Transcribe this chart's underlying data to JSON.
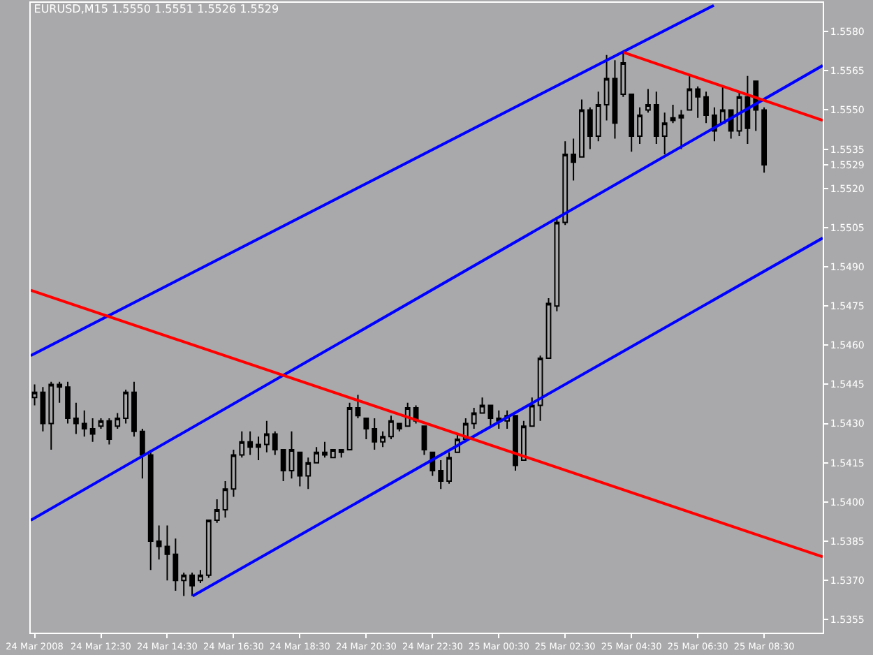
{
  "chart_data": {
    "type": "candlestick",
    "title": "EURUSD,M15 1.5550 1.5551 1.5526 1.5529",
    "x": [
      "2008-03-24T10:30",
      "2008-03-24T10:45",
      "2008-03-24T11:00",
      "2008-03-24T11:15",
      "2008-03-24T11:30",
      "2008-03-24T11:45",
      "2008-03-24T12:00",
      "2008-03-24T12:15",
      "2008-03-24T12:30",
      "2008-03-24T12:45",
      "2008-03-24T13:00",
      "2008-03-24T13:15",
      "2008-03-24T13:30",
      "2008-03-24T13:45",
      "2008-03-24T14:00",
      "2008-03-24T14:15",
      "2008-03-24T14:30",
      "2008-03-24T14:45",
      "2008-03-24T15:00",
      "2008-03-24T15:15",
      "2008-03-24T15:30",
      "2008-03-24T15:45",
      "2008-03-24T16:00",
      "2008-03-24T16:15",
      "2008-03-24T16:30",
      "2008-03-24T16:45",
      "2008-03-24T17:00",
      "2008-03-24T17:15",
      "2008-03-24T17:30",
      "2008-03-24T17:45",
      "2008-03-24T18:00",
      "2008-03-24T18:15",
      "2008-03-24T18:30",
      "2008-03-24T18:45",
      "2008-03-24T19:00",
      "2008-03-24T19:15",
      "2008-03-24T19:30",
      "2008-03-24T19:45",
      "2008-03-24T20:00",
      "2008-03-24T20:15",
      "2008-03-24T20:30",
      "2008-03-24T20:45",
      "2008-03-24T21:00",
      "2008-03-24T21:15",
      "2008-03-24T21:30",
      "2008-03-24T21:45",
      "2008-03-24T22:00",
      "2008-03-24T22:15",
      "2008-03-24T22:30",
      "2008-03-24T22:45",
      "2008-03-24T23:00",
      "2008-03-24T23:15",
      "2008-03-24T23:30",
      "2008-03-24T23:45",
      "2008-03-25T00:00",
      "2008-03-25T00:15",
      "2008-03-25T00:30",
      "2008-03-25T00:45",
      "2008-03-25T01:00",
      "2008-03-25T01:15",
      "2008-03-25T01:30",
      "2008-03-25T01:45",
      "2008-03-25T02:00",
      "2008-03-25T02:15",
      "2008-03-25T02:30",
      "2008-03-25T02:45",
      "2008-03-25T03:00",
      "2008-03-25T03:15",
      "2008-03-25T03:30",
      "2008-03-25T03:45",
      "2008-03-25T04:00",
      "2008-03-25T04:15",
      "2008-03-25T04:30",
      "2008-03-25T04:45",
      "2008-03-25T05:00",
      "2008-03-25T05:15",
      "2008-03-25T05:30",
      "2008-03-25T05:45",
      "2008-03-25T06:00",
      "2008-03-25T06:15",
      "2008-03-25T06:30",
      "2008-03-25T06:45",
      "2008-03-25T07:00",
      "2008-03-25T07:15",
      "2008-03-25T07:30",
      "2008-03-25T07:45",
      "2008-03-25T08:00",
      "2008-03-25T08:15",
      "2008-03-25T08:30"
    ],
    "ohlc": [
      [
        1.544,
        1.5445,
        1.5437,
        1.5442
      ],
      [
        1.5442,
        1.5444,
        1.5427,
        1.543
      ],
      [
        1.543,
        1.5446,
        1.542,
        1.5445
      ],
      [
        1.5445,
        1.5446,
        1.5438,
        1.5444
      ],
      [
        1.5444,
        1.5446,
        1.543,
        1.5432
      ],
      [
        1.5432,
        1.5438,
        1.5426,
        1.543
      ],
      [
        1.543,
        1.5435,
        1.5425,
        1.5428
      ],
      [
        1.5428,
        1.5432,
        1.5423,
        1.5426
      ],
      [
        1.5429,
        1.5432,
        1.5428,
        1.5431
      ],
      [
        1.5431,
        1.5432,
        1.5422,
        1.5424
      ],
      [
        1.5429,
        1.5434,
        1.5428,
        1.5432
      ],
      [
        1.5432,
        1.5443,
        1.543,
        1.5442
      ],
      [
        1.5442,
        1.5446,
        1.5425,
        1.5427
      ],
      [
        1.5427,
        1.5428,
        1.5409,
        1.5418
      ],
      [
        1.5418,
        1.542,
        1.5374,
        1.5385
      ],
      [
        1.5385,
        1.5391,
        1.5378,
        1.5383
      ],
      [
        1.5383,
        1.5391,
        1.537,
        1.538
      ],
      [
        1.538,
        1.5386,
        1.5366,
        1.537
      ],
      [
        1.537,
        1.5373,
        1.5364,
        1.5372
      ],
      [
        1.5372,
        1.5373,
        1.5364,
        1.5368
      ],
      [
        1.537,
        1.5374,
        1.5369,
        1.5372
      ],
      [
        1.5372,
        1.5393,
        1.5371,
        1.5393
      ],
      [
        1.5393,
        1.5401,
        1.5392,
        1.5397
      ],
      [
        1.5397,
        1.5408,
        1.5394,
        1.5405
      ],
      [
        1.5405,
        1.542,
        1.5402,
        1.5418
      ],
      [
        1.5418,
        1.5427,
        1.5417,
        1.5423
      ],
      [
        1.5423,
        1.5427,
        1.5418,
        1.5421
      ],
      [
        1.5421,
        1.5425,
        1.5416,
        1.5422
      ],
      [
        1.5422,
        1.5431,
        1.5419,
        1.5426
      ],
      [
        1.5426,
        1.5427,
        1.5418,
        1.542
      ],
      [
        1.542,
        1.542,
        1.5408,
        1.5412
      ],
      [
        1.5412,
        1.5427,
        1.5409,
        1.542
      ],
      [
        1.5419,
        1.5419,
        1.5406,
        1.541
      ],
      [
        1.541,
        1.5417,
        1.5405,
        1.5415
      ],
      [
        1.5415,
        1.5421,
        1.5415,
        1.5419
      ],
      [
        1.5419,
        1.5423,
        1.5417,
        1.5418
      ],
      [
        1.5417,
        1.542,
        1.5417,
        1.542
      ],
      [
        1.5419,
        1.542,
        1.5417,
        1.542
      ],
      [
        1.542,
        1.5438,
        1.542,
        1.5436
      ],
      [
        1.5436,
        1.5441,
        1.5432,
        1.5433
      ],
      [
        1.5432,
        1.5432,
        1.5424,
        1.5428
      ],
      [
        1.5428,
        1.5432,
        1.542,
        1.5423
      ],
      [
        1.5423,
        1.5427,
        1.5421,
        1.5425
      ],
      [
        1.5425,
        1.5433,
        1.5424,
        1.5431
      ],
      [
        1.543,
        1.543,
        1.5427,
        1.5428
      ],
      [
        1.5429,
        1.5438,
        1.5429,
        1.5436
      ],
      [
        1.5436,
        1.5437,
        1.543,
        1.5431
      ],
      [
        1.5429,
        1.5429,
        1.5418,
        1.542
      ],
      [
        1.5419,
        1.5419,
        1.541,
        1.5412
      ],
      [
        1.5412,
        1.5416,
        1.5405,
        1.5408
      ],
      [
        1.5408,
        1.5419,
        1.5407,
        1.5417
      ],
      [
        1.5419,
        1.5426,
        1.5419,
        1.5424
      ],
      [
        1.5424,
        1.5432,
        1.5423,
        1.543
      ],
      [
        1.543,
        1.5436,
        1.5428,
        1.5434
      ],
      [
        1.5434,
        1.544,
        1.5434,
        1.5437
      ],
      [
        1.5437,
        1.5437,
        1.5429,
        1.5432
      ],
      [
        1.5432,
        1.5435,
        1.5428,
        1.5431
      ],
      [
        1.5431,
        1.5435,
        1.5428,
        1.5433
      ],
      [
        1.5433,
        1.5433,
        1.5412,
        1.5414
      ],
      [
        1.5416,
        1.5431,
        1.5416,
        1.5429
      ],
      [
        1.5429,
        1.544,
        1.5429,
        1.5437
      ],
      [
        1.5437,
        1.5456,
        1.5431,
        1.5455
      ],
      [
        1.5455,
        1.5478,
        1.5455,
        1.5476
      ],
      [
        1.5475,
        1.5509,
        1.5473,
        1.5507
      ],
      [
        1.5507,
        1.5538,
        1.5506,
        1.5533
      ],
      [
        1.5533,
        1.5539,
        1.5523,
        1.553
      ],
      [
        1.5532,
        1.5554,
        1.5532,
        1.555
      ],
      [
        1.555,
        1.5551,
        1.5535,
        1.554
      ],
      [
        1.554,
        1.5557,
        1.5538,
        1.5552
      ],
      [
        1.5552,
        1.5571,
        1.5546,
        1.5562
      ],
      [
        1.5562,
        1.5569,
        1.5539,
        1.5545
      ],
      [
        1.5556,
        1.5572,
        1.5555,
        1.5568
      ],
      [
        1.5556,
        1.5556,
        1.5534,
        1.554
      ],
      [
        1.554,
        1.5551,
        1.5537,
        1.5548
      ],
      [
        1.555,
        1.5558,
        1.5549,
        1.5552
      ],
      [
        1.5552,
        1.5557,
        1.5537,
        1.554
      ],
      [
        1.554,
        1.5549,
        1.5533,
        1.5545
      ],
      [
        1.5546,
        1.5552,
        1.5545,
        1.5547
      ],
      [
        1.5547,
        1.555,
        1.5535,
        1.5548
      ],
      [
        1.555,
        1.5563,
        1.555,
        1.5558
      ],
      [
        1.5558,
        1.5559,
        1.5547,
        1.5555
      ],
      [
        1.5555,
        1.5557,
        1.5545,
        1.5548
      ],
      [
        1.5548,
        1.5551,
        1.5538,
        1.5542
      ],
      [
        1.5545,
        1.5559,
        1.5545,
        1.555
      ],
      [
        1.555,
        1.555,
        1.5539,
        1.5542
      ],
      [
        1.5542,
        1.5557,
        1.554,
        1.5555
      ],
      [
        1.5555,
        1.5563,
        1.5537,
        1.5543
      ],
      [
        1.5561,
        1.5561,
        1.5542,
        1.555
      ],
      [
        1.555,
        1.5551,
        1.5526,
        1.5529
      ]
    ],
    "color": "#000000",
    "series": [
      {
        "type": "line",
        "color": "#0000ff",
        "x": [
          "2008-03-24T10:23",
          "2008-03-25T06:59"
        ],
        "values": [
          1.5456,
          1.559
        ]
      },
      {
        "type": "line",
        "color": "#0000ff",
        "x": [
          "2008-03-24T10:23",
          "2008-03-25T10:16"
        ],
        "values": [
          1.5393,
          1.5567
        ]
      },
      {
        "type": "line",
        "color": "#0000ff",
        "x": [
          "2008-03-24T15:16",
          "2008-03-25T10:16"
        ],
        "values": [
          1.5364,
          1.5501
        ]
      },
      {
        "type": "line",
        "color": "#ff0000",
        "x": [
          "2008-03-24T10:23",
          "2008-03-25T10:16"
        ],
        "values": [
          1.5481,
          1.5379
        ]
      },
      {
        "type": "line",
        "color": "#ff0000",
        "x": [
          "2008-03-25T04:16",
          "2008-03-25T10:16"
        ],
        "values": [
          1.5572,
          1.5546
        ]
      }
    ],
    "xlim": [
      "2008-03-24T10:23",
      "2008-03-25T10:16"
    ],
    "xticks": [
      {
        "value": "2008-03-24T10:30",
        "label": "24 Mar 2008"
      },
      {
        "value": "2008-03-24T12:30",
        "label": "24 Mar 12:30"
      },
      {
        "value": "2008-03-24T14:30",
        "label": "24 Mar 14:30"
      },
      {
        "value": "2008-03-24T16:30",
        "label": "24 Mar 16:30"
      },
      {
        "value": "2008-03-24T18:30",
        "label": "24 Mar 18:30"
      },
      {
        "value": "2008-03-24T20:30",
        "label": "24 Mar 20:30"
      },
      {
        "value": "2008-03-24T22:30",
        "label": "24 Mar 22:30"
      },
      {
        "value": "2008-03-25T00:30",
        "label": "25 Mar 00:30"
      },
      {
        "value": "2008-03-25T02:30",
        "label": "25 Mar 02:30"
      },
      {
        "value": "2008-03-25T04:30",
        "label": "25 Mar 04:30"
      },
      {
        "value": "2008-03-25T06:30",
        "label": "25 Mar 06:30"
      },
      {
        "value": "2008-03-25T08:30",
        "label": "25 Mar 08:30"
      }
    ],
    "ylim": [
      1.535,
      1.5591
    ],
    "yticks": [
      {
        "value": 1.5355,
        "label": "1.5355"
      },
      {
        "value": 1.537,
        "label": "1.5370"
      },
      {
        "value": 1.5385,
        "label": "1.5385"
      },
      {
        "value": 1.54,
        "label": "1.5400"
      },
      {
        "value": 1.5415,
        "label": "1.5415"
      },
      {
        "value": 1.543,
        "label": "1.5430"
      },
      {
        "value": 1.5445,
        "label": "1.5445"
      },
      {
        "value": 1.546,
        "label": "1.5460"
      },
      {
        "value": 1.5475,
        "label": "1.5475"
      },
      {
        "value": 1.549,
        "label": "1.5490"
      },
      {
        "value": 1.5505,
        "label": "1.5505"
      },
      {
        "value": 1.552,
        "label": "1.5520"
      },
      {
        "value": 1.5529,
        "label": "1.5529"
      },
      {
        "value": 1.5535,
        "label": "1.5535"
      },
      {
        "value": 1.555,
        "label": "1.5550"
      },
      {
        "value": 1.5565,
        "label": "1.5565"
      },
      {
        "value": 1.558,
        "label": "1.5580"
      }
    ]
  }
}
